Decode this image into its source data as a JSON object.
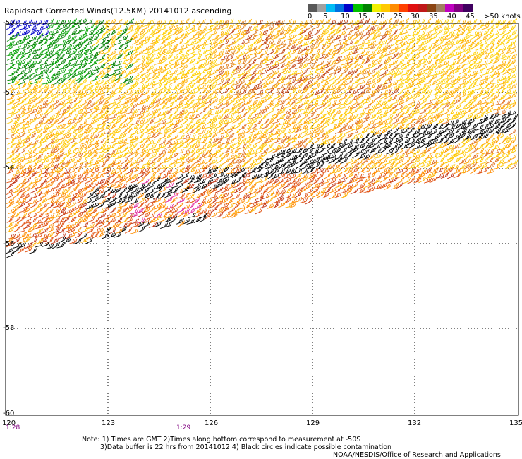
{
  "title": "Rapidsact Corrected Winds(12.5KM) 20141012 ascending",
  "legend": {
    "colors": [
      "#585858",
      "#a0a0a0",
      "#00bcf4",
      "#0070e0",
      "#0000c8",
      "#00c000",
      "#008000",
      "#f0f000",
      "#ffc800",
      "#ff8c00",
      "#ff4000",
      "#e01010",
      "#c01818",
      "#8b4513",
      "#a08060",
      "#c000c0",
      "#800080",
      "#400060"
    ],
    "labels": [
      "0",
      "5",
      "10",
      "15",
      "20",
      "25",
      "30",
      "35",
      "40",
      "45",
      ">50 knots"
    ]
  },
  "map": {
    "lat_labels": [
      "-50",
      "-52",
      "-54",
      "-56",
      "-58",
      "-60"
    ],
    "lon_labels": [
      "120",
      "123",
      "126",
      "129",
      "132",
      "135"
    ],
    "time_labels": [
      "1:28",
      "1:29"
    ]
  },
  "notes": {
    "line1": "Note: 1) Times are GMT 2)Times along bottom correspond to measurement at -50S",
    "line2": "3)Data buffer is 22 hrs from 20141012 4) Black circles indicate possible contamination",
    "credit": "NOAA/NESDIS/Office of Research and Applications"
  }
}
